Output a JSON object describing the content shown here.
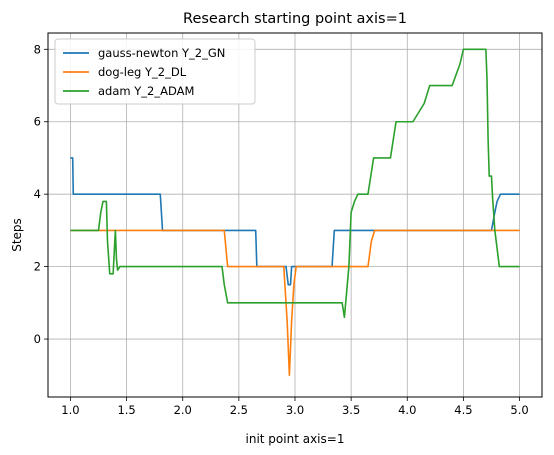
{
  "chart_data": {
    "type": "line",
    "title": "Research starting point axis=1",
    "xlabel": "init point axis=1",
    "ylabel": "Steps",
    "xlim": [
      0.8,
      5.2
    ],
    "ylim": [
      -1.6,
      8.45
    ],
    "xticks": [
      1.0,
      1.5,
      2.0,
      2.5,
      3.0,
      3.5,
      4.0,
      4.5,
      5.0
    ],
    "xtick_labels": [
      "1.0",
      "1.5",
      "2.0",
      "2.5",
      "3.0",
      "3.5",
      "4.0",
      "4.5",
      "5.0"
    ],
    "yticks": [
      0,
      2,
      4,
      6,
      8
    ],
    "ytick_labels": [
      "0",
      "2",
      "4",
      "6",
      "8"
    ],
    "grid": true,
    "legend_position": "top-left",
    "series": [
      {
        "name": "gauss-newton Y_2_GN",
        "color": "#1f77b4",
        "points": [
          [
            1.0,
            5.0
          ],
          [
            1.02,
            5.0
          ],
          [
            1.025,
            4.0
          ],
          [
            1.8,
            4.0
          ],
          [
            1.82,
            3.0
          ],
          [
            2.65,
            3.0
          ],
          [
            2.66,
            2.0
          ],
          [
            2.92,
            2.0
          ],
          [
            2.94,
            1.5
          ],
          [
            2.96,
            1.5
          ],
          [
            2.97,
            2.0
          ],
          [
            3.33,
            2.0
          ],
          [
            3.35,
            3.0
          ],
          [
            4.75,
            3.0
          ],
          [
            4.78,
            3.5
          ],
          [
            4.8,
            3.8
          ],
          [
            4.83,
            4.0
          ],
          [
            5.0,
            4.0
          ]
        ]
      },
      {
        "name": "dog-leg Y_2_DL",
        "color": "#ff7f0e",
        "points": [
          [
            1.0,
            3.0
          ],
          [
            2.37,
            3.0
          ],
          [
            2.4,
            2.0
          ],
          [
            2.9,
            2.0
          ],
          [
            2.93,
            0.5
          ],
          [
            2.95,
            -1.0
          ],
          [
            2.97,
            0.5
          ],
          [
            2.99,
            1.5
          ],
          [
            3.01,
            2.0
          ],
          [
            3.65,
            2.0
          ],
          [
            3.68,
            2.7
          ],
          [
            3.71,
            3.0
          ],
          [
            5.0,
            3.0
          ]
        ]
      },
      {
        "name": "adam Y_2_ADAM",
        "color": "#2ca02c",
        "points": [
          [
            1.0,
            3.0
          ],
          [
            1.25,
            3.0
          ],
          [
            1.27,
            3.5
          ],
          [
            1.29,
            3.8
          ],
          [
            1.32,
            3.8
          ],
          [
            1.33,
            2.7
          ],
          [
            1.35,
            1.8
          ],
          [
            1.38,
            1.8
          ],
          [
            1.4,
            3.0
          ],
          [
            1.41,
            2.2
          ],
          [
            1.42,
            1.9
          ],
          [
            1.44,
            2.0
          ],
          [
            2.35,
            2.0
          ],
          [
            2.37,
            1.5
          ],
          [
            2.4,
            1.0
          ],
          [
            3.42,
            1.0
          ],
          [
            3.44,
            0.6
          ],
          [
            3.46,
            1.3
          ],
          [
            3.48,
            2.0
          ],
          [
            3.5,
            3.5
          ],
          [
            3.53,
            3.8
          ],
          [
            3.56,
            4.0
          ],
          [
            3.65,
            4.0
          ],
          [
            3.7,
            5.0
          ],
          [
            3.85,
            5.0
          ],
          [
            3.9,
            6.0
          ],
          [
            4.05,
            6.0
          ],
          [
            4.15,
            6.5
          ],
          [
            4.2,
            7.0
          ],
          [
            4.4,
            7.0
          ],
          [
            4.47,
            7.6
          ],
          [
            4.5,
            8.0
          ],
          [
            4.7,
            8.0
          ],
          [
            4.71,
            7.2
          ],
          [
            4.72,
            5.5
          ],
          [
            4.73,
            4.5
          ],
          [
            4.75,
            4.5
          ],
          [
            4.76,
            3.9
          ],
          [
            4.78,
            3.0
          ],
          [
            4.82,
            2.0
          ],
          [
            5.0,
            2.0
          ]
        ]
      }
    ]
  }
}
